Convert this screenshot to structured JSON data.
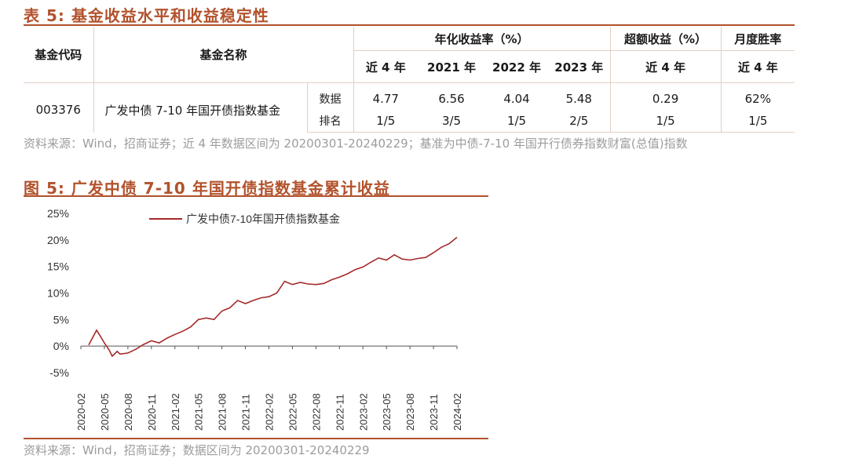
{
  "table_caption": "表 5:  基金收益水平和收益稳定性",
  "table": {
    "headers": {
      "code": "基金代码",
      "name": "基金名称",
      "annual_group": "年化收益率（%）",
      "excess_group": "超额收益（%）",
      "monthly_group": "月度胜率",
      "annual_cols": [
        "近 4 年",
        "2021 年",
        "2022 年",
        "2023 年"
      ],
      "excess_col": "近 4 年",
      "monthly_col": "近 4 年"
    },
    "fund_code": "003376",
    "fund_name": "广发中债 7-10 年国开债指数基金",
    "row_labels": [
      "数据",
      "排名"
    ],
    "data_row": [
      "4.77",
      "6.56",
      "4.04",
      "5.48",
      "0.29",
      "62%"
    ],
    "rank_row": [
      "1/5",
      "3/5",
      "1/5",
      "2/5",
      "1/5",
      "1/5"
    ]
  },
  "table_source": "资料来源：Wind，招商证券；近 4 年数据区间为 20200301-20240229；基准为中债-7-10 年国开行债券指数财富(总值)指数",
  "figure_caption": "图 5:  广发中债 7-10 年国开债指数基金累计收益",
  "figure_source": "资料来源：Wind，招商证券；数据区间为 20200301-20240229",
  "chart_data": {
    "type": "line",
    "title": "",
    "xlabel": "",
    "ylabel": "",
    "ylim": [
      -5,
      25
    ],
    "yticks": [
      "25%",
      "20%",
      "15%",
      "10%",
      "5%",
      "0%",
      "-5%"
    ],
    "ytick_values": [
      25,
      20,
      15,
      10,
      5,
      0,
      -5
    ],
    "xticks": [
      "2020-02",
      "2020-05",
      "2020-08",
      "2020-11",
      "2021-02",
      "2021-05",
      "2021-08",
      "2021-11",
      "2022-02",
      "2022-05",
      "2022-08",
      "2022-11",
      "2023-02",
      "2023-05",
      "2023-08",
      "2023-11",
      "2024-02"
    ],
    "legend_position": "top",
    "line_color": "#a52a2a",
    "series": [
      {
        "name": "广发中债7-10年国开债指数基金",
        "x": [
          "2020-03",
          "2020-03-15",
          "2020-04",
          "2020-04-20",
          "2020-05",
          "2020-05-20",
          "2020-06",
          "2020-06-20",
          "2020-07",
          "2020-08",
          "2020-09",
          "2020-10",
          "2020-11",
          "2020-12",
          "2021-01",
          "2021-02",
          "2021-03",
          "2021-04",
          "2021-05",
          "2021-06",
          "2021-07",
          "2021-08",
          "2021-09",
          "2021-10",
          "2021-11",
          "2021-12",
          "2022-01",
          "2022-02",
          "2022-03",
          "2022-04",
          "2022-05",
          "2022-06",
          "2022-07",
          "2022-08",
          "2022-09",
          "2022-10",
          "2022-11",
          "2022-12",
          "2023-01",
          "2023-02",
          "2023-03",
          "2023-04",
          "2023-05",
          "2023-06",
          "2023-07",
          "2023-08",
          "2023-09",
          "2023-10",
          "2023-11",
          "2023-12",
          "2024-01",
          "2024-02"
        ],
        "values": [
          0.2,
          1.5,
          3.0,
          1.5,
          0.6,
          -0.8,
          -1.9,
          -1.0,
          -1.5,
          -1.3,
          -0.6,
          0.3,
          1.0,
          0.6,
          1.5,
          2.2,
          2.8,
          3.6,
          5.0,
          5.3,
          5.0,
          6.6,
          7.2,
          8.6,
          8.0,
          8.6,
          9.1,
          9.3,
          10.0,
          12.2,
          11.6,
          12.0,
          11.7,
          11.6,
          11.8,
          12.5,
          13.0,
          13.6,
          14.4,
          14.9,
          15.8,
          16.6,
          16.2,
          17.2,
          16.4,
          16.2,
          16.5,
          16.7,
          17.6,
          18.6,
          19.3,
          20.5
        ]
      }
    ]
  }
}
